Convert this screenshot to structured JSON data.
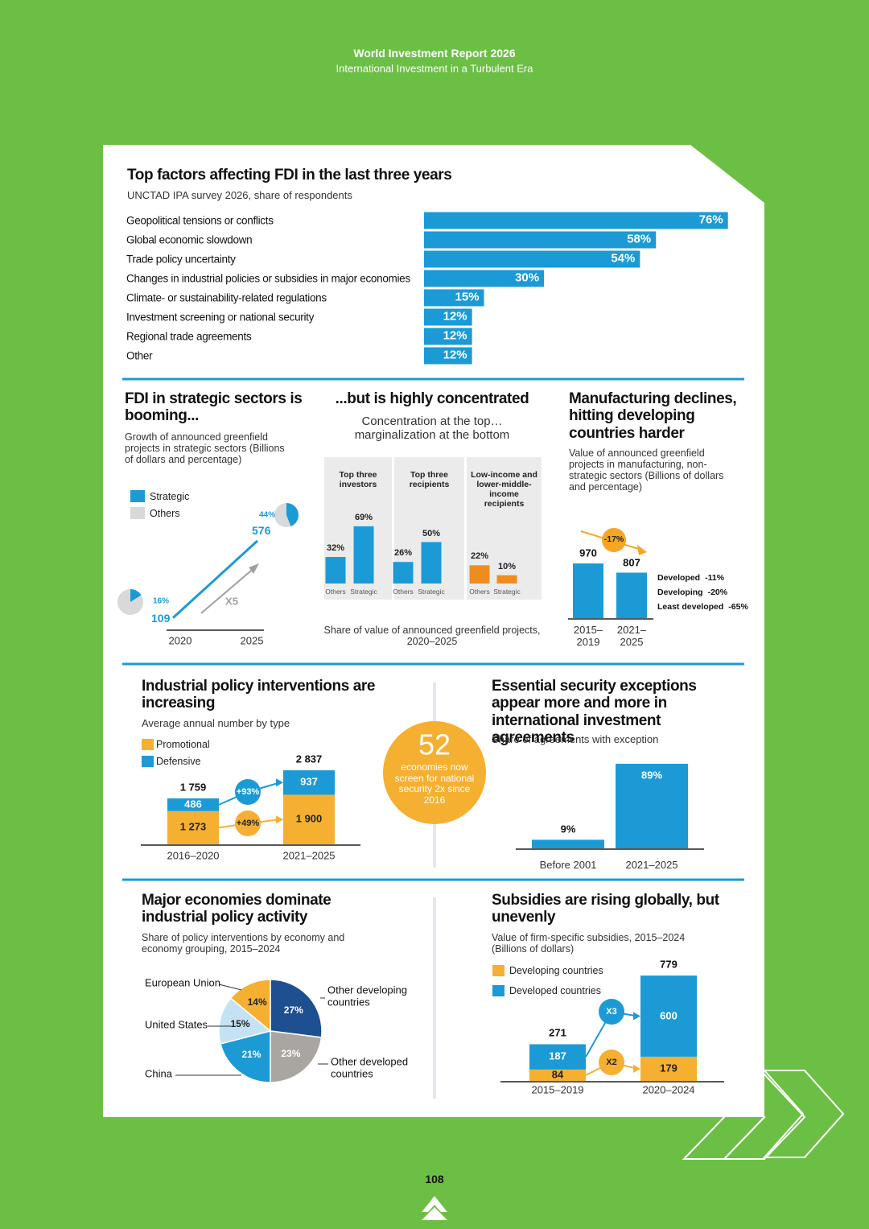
{
  "header": {
    "title": "World Investment Report 2026",
    "subtitle": "International Investment in a Turbulent Era"
  },
  "chart_data": [
    {
      "type": "bar",
      "orientation": "horizontal",
      "title": "Top factors affecting FDI in the last three years",
      "subtitle": "UNCTAD IPA survey 2026, share of respondents",
      "categories": [
        "Geopolitical tensions or conflicts",
        "Global economic slowdown",
        "Trade policy uncertainty",
        "Changes in industrial policies or subsidies in major economies",
        "Climate- or sustainability-related regulations",
        "Investment screening or national security",
        "Regional trade agreements",
        "Other"
      ],
      "values": [
        76,
        58,
        54,
        30,
        15,
        12,
        12,
        12
      ],
      "value_labels": [
        "76%",
        "58%",
        "54%",
        "30%",
        "15%",
        "12%",
        "12%",
        "12%"
      ],
      "color": "#1b9ad6"
    },
    {
      "type": "line",
      "title": "FDI in strategic sectors is booming...",
      "subtitle": "Growth of announced greenfield projects in strategic sectors (Billions of dollars and percentage)",
      "legend": [
        {
          "name": "Strategic",
          "color": "#1b9ad6"
        },
        {
          "name": "Others",
          "color": "#d9d9d9"
        }
      ],
      "categories": [
        "2020",
        "2025"
      ],
      "values": [
        109,
        576
      ],
      "shares": [
        16,
        44
      ],
      "share_labels": [
        "16%",
        "44%"
      ],
      "annotation": "X5"
    },
    {
      "type": "grouped-bar",
      "title": "...but is highly concentrated",
      "subtitle": "Concentration at the top… marginalization at the bottom",
      "groups": [
        {
          "label": "Top three investors",
          "color": "#1b9ad6",
          "values": [
            32,
            69
          ],
          "value_labels": [
            "32%",
            "69%"
          ]
        },
        {
          "label": "Top three recipients",
          "color": "#1b9ad6",
          "values": [
            26,
            50
          ],
          "value_labels": [
            "26%",
            "50%"
          ]
        },
        {
          "label": "Low-income and lower-middle-income recipients",
          "color": "#f08c1e",
          "values": [
            22,
            10
          ],
          "value_labels": [
            "22%",
            "10%"
          ]
        }
      ],
      "bar_labels": [
        "Others",
        "Strategic"
      ],
      "note": "Share of value of announced greenfield projects, 2020–2025"
    },
    {
      "type": "bar",
      "title": "Manufacturing declines, hitting developing countries harder",
      "subtitle": "Value of announced greenfield projects in manufacturing, non-strategic sectors (Billions of dollars and percentage)",
      "categories": [
        "2015–2019",
        "2021–2025"
      ],
      "values": [
        970,
        807
      ],
      "color": "#1b9ad6",
      "change_label": "-17%",
      "breakdown": [
        {
          "label": "Developed",
          "change": "-11%"
        },
        {
          "label": "Developing",
          "change": "-20%"
        },
        {
          "label": "Least developed",
          "change": "-65%"
        }
      ]
    },
    {
      "type": "stacked-bar",
      "title": "Industrial policy interventions are increasing",
      "subtitle": "Average annual number by type",
      "categories": [
        "2016–2020",
        "2021–2025"
      ],
      "series": [
        {
          "name": "Promotional",
          "color": "#f5b031",
          "values": [
            1273,
            1900
          ],
          "value_labels": [
            "1 273",
            "1 900"
          ],
          "change_label": "+49%"
        },
        {
          "name": "Defensive",
          "color": "#1b9ad6",
          "values": [
            486,
            937
          ],
          "change_label": "+93%"
        }
      ],
      "totals": [
        1759,
        2837
      ],
      "total_labels": [
        "1 759",
        "2 837"
      ]
    },
    {
      "type": "bar",
      "title": "Essential security exceptions appear more and more in international investment agreements",
      "subtitle": "Share of agreements with exception",
      "categories": [
        "Before 2001",
        "2021–2025"
      ],
      "values": [
        9,
        89
      ],
      "value_labels": [
        "9%",
        "89%"
      ],
      "color": "#1b9ad6"
    },
    {
      "type": "pie",
      "title": "Major economies dominate industrial policy activity",
      "subtitle": "Share of policy interventions by economy and economy grouping, 2015–2024",
      "categories": [
        "Other developing countries",
        "Other developed countries",
        "China",
        "United States",
        "European Union"
      ],
      "values": [
        27,
        23,
        21,
        15,
        14
      ],
      "value_labels": [
        "27%",
        "23%",
        "21%",
        "15%",
        "14%"
      ],
      "colors": [
        "#1d4f91",
        "#a9a5a0",
        "#1b9ad6",
        "#c3e2f3",
        "#f5b031"
      ]
    },
    {
      "type": "stacked-bar",
      "title": "Subsidies are rising globally, but unevenly",
      "subtitle": "Value of firm-specific subsidies, 2015–2024 (Billions of dollars)",
      "categories": [
        "2015–2019",
        "2020–2024"
      ],
      "series": [
        {
          "name": "Developing countries",
          "color": "#f5b031",
          "values": [
            84,
            179
          ],
          "change_label": "X2"
        },
        {
          "name": "Developed countries",
          "color": "#1b9ad6",
          "values": [
            187,
            600
          ],
          "change_label": "X3"
        }
      ],
      "totals": [
        271,
        779
      ]
    }
  ],
  "callout": {
    "value": 52,
    "text": "economies now screen for national security 2x since 2016"
  },
  "page_number": "108"
}
